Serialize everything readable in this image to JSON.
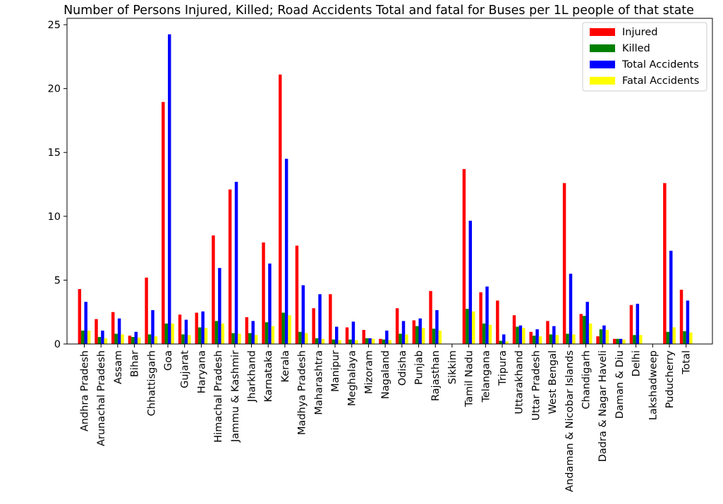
{
  "chart_data": {
    "type": "bar",
    "title": "Number of Persons Injured, Killed; Road Accidents Total and fatal for Buses per 1L people of that state",
    "xlabel": "",
    "ylabel": "",
    "ylim": [
      0,
      25.5
    ],
    "yticks": [
      0,
      5,
      10,
      15,
      20,
      25
    ],
    "grid": false,
    "legend_position": "top-right",
    "categories": [
      "Andhra Pradesh",
      "Arunachal Pradesh",
      "Assam",
      "Bihar",
      "Chhattisgarh",
      "Goa",
      "Gujarat",
      "Haryana",
      "Himachal Pradesh",
      "Jammu & Kashmir",
      "Jharkhand",
      "Karnataka",
      "Kerala",
      "Madhya Pradesh",
      "Maharashtra",
      "Manipur",
      "Meghalaya",
      "Mizoram",
      "Nagaland",
      "Odisha",
      "Punjab",
      "Rajasthan",
      "Sikkim",
      "Tamil Nadu",
      "Telangana",
      "Tripura",
      "Uttarakhand",
      "Uttar Pradesh",
      "West Bengal",
      "Andaman & Nicobar Islands",
      "Chandigarh",
      "Dadra & Nagar Haveli",
      "Daman & Diu",
      "Delhi",
      "Lakshadweep",
      "Puducherry",
      "Total"
    ],
    "series": [
      {
        "name": "Injured",
        "color": "#ff0000",
        "values": [
          4.3,
          1.95,
          2.5,
          0.65,
          5.2,
          18.95,
          2.3,
          2.45,
          8.5,
          12.1,
          2.1,
          7.95,
          21.1,
          7.7,
          2.8,
          3.9,
          1.3,
          1.1,
          0.4,
          2.8,
          1.85,
          4.15,
          0,
          13.7,
          4.05,
          3.4,
          2.25,
          0.95,
          1.8,
          12.6,
          2.35,
          0.6,
          0.4,
          3.05,
          0,
          12.6,
          4.25
        ]
      },
      {
        "name": "Killed",
        "color": "#008000",
        "values": [
          1.05,
          0.55,
          0.8,
          0.55,
          0.75,
          1.6,
          0.75,
          1.3,
          1.8,
          0.85,
          0.85,
          1.7,
          2.45,
          0.95,
          0.45,
          0.35,
          0.35,
          0.45,
          0.35,
          0.8,
          1.4,
          1.2,
          0,
          2.75,
          1.6,
          0.25,
          1.35,
          0.65,
          0.75,
          0.8,
          2.2,
          1.15,
          0.4,
          0.7,
          0,
          0.95,
          1.0
        ]
      },
      {
        "name": "Total Accidents",
        "color": "#0000ff",
        "values": [
          3.3,
          1.05,
          2.0,
          0.95,
          2.65,
          24.25,
          1.9,
          2.55,
          5.95,
          12.7,
          1.8,
          6.3,
          14.5,
          4.6,
          3.9,
          1.35,
          1.75,
          0.45,
          1.05,
          1.8,
          2.0,
          2.65,
          0,
          9.65,
          4.5,
          0.75,
          1.45,
          1.15,
          1.4,
          5.5,
          3.3,
          1.45,
          0.4,
          3.15,
          0,
          7.3,
          3.4
        ]
      },
      {
        "name": "Fatal Accidents",
        "color": "#ffff00",
        "values": [
          1.05,
          0.45,
          0.75,
          0.5,
          0.6,
          1.6,
          0.7,
          1.25,
          1.6,
          0.8,
          0.7,
          1.4,
          2.25,
          0.85,
          0.4,
          0.3,
          0.3,
          0.4,
          0.3,
          0.75,
          1.25,
          1.05,
          0,
          2.55,
          1.5,
          0.2,
          1.25,
          0.6,
          0.7,
          0.75,
          1.6,
          1.1,
          0.35,
          0.7,
          0,
          1.3,
          0.9
        ]
      }
    ]
  }
}
